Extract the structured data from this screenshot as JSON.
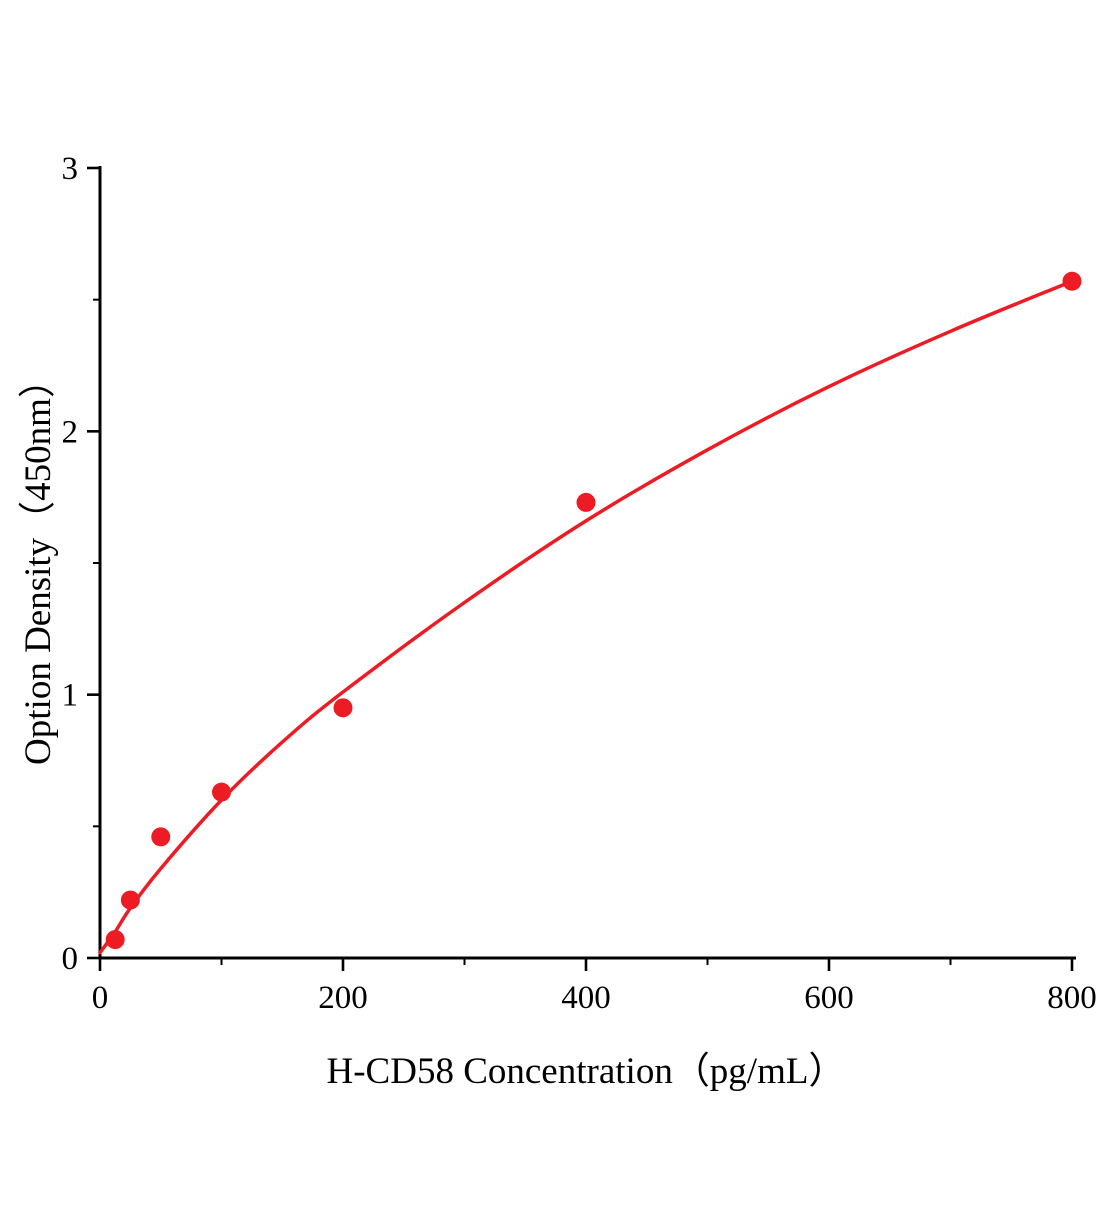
{
  "page": {
    "background": "#ffffff"
  },
  "chart_data": {
    "type": "scatter",
    "title": "",
    "xlabel": "H-CD58 Concentration（pg/mL）",
    "ylabel": "Option Density（450nm）",
    "xlim": [
      0,
      800
    ],
    "ylim": [
      0,
      3
    ],
    "x_major_ticks": [
      0,
      200,
      400,
      600,
      800
    ],
    "x_minor_ticks": [
      100,
      300,
      500,
      700
    ],
    "y_major_ticks": [
      0,
      1,
      2,
      3
    ],
    "y_minor_ticks": [
      0.5,
      1.5,
      2.5
    ],
    "points": [
      [
        12.5,
        0.07
      ],
      [
        25,
        0.22
      ],
      [
        50,
        0.46
      ],
      [
        100,
        0.63
      ],
      [
        200,
        0.95
      ],
      [
        400,
        1.73
      ],
      [
        800,
        2.57
      ]
    ],
    "fit_curve": [
      [
        0,
        0.02
      ],
      [
        12.5,
        0.1
      ],
      [
        25,
        0.19
      ],
      [
        50,
        0.34
      ],
      [
        100,
        0.6
      ],
      [
        150,
        0.82
      ],
      [
        200,
        1.01
      ],
      [
        300,
        1.35
      ],
      [
        400,
        1.66
      ],
      [
        500,
        1.93
      ],
      [
        600,
        2.17
      ],
      [
        700,
        2.38
      ],
      [
        800,
        2.57
      ]
    ],
    "grid": false,
    "legend": null,
    "colors": {
      "curve": "#ed1c24",
      "point": "#ed1c24",
      "axis": "#000000"
    }
  }
}
